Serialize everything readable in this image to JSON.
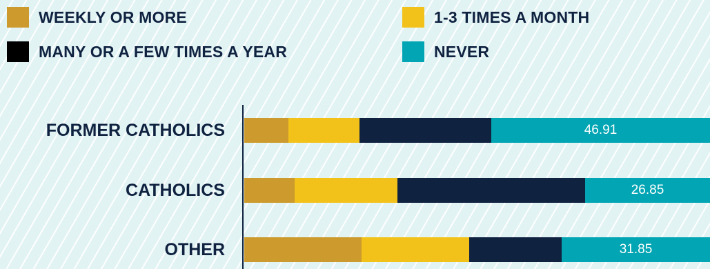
{
  "legend": [
    {
      "label": "WEEKLY OR MORE",
      "color": "#cc9a2d"
    },
    {
      "label": "1-3 TIMES A MONTH",
      "color": "#f3c21a"
    },
    {
      "label": "MANY OR A FEW TIMES A YEAR",
      "color": "#0f2240"
    },
    {
      "label": "NEVER",
      "color": "#02a5b3"
    }
  ],
  "chart_data": {
    "type": "bar",
    "orientation": "horizontal",
    "stacked": true,
    "categories": [
      "FORMER CATHOLICS",
      "CATHOLICS",
      "OTHER"
    ],
    "series": [
      {
        "name": "WEEKLY OR MORE",
        "values": [
          9.5,
          10.8,
          25.2
        ]
      },
      {
        "name": "1-3 TIMES A MONTH",
        "values": [
          15.2,
          22.1,
          23.1
        ]
      },
      {
        "name": "MANY OR A FEW TIMES A YEAR",
        "values": [
          28.4,
          40.25,
          19.85
        ]
      },
      {
        "name": "NEVER",
        "values": [
          46.91,
          26.85,
          31.85
        ]
      }
    ],
    "data_labels": [
      "46.91",
      "26.85",
      "31.85"
    ],
    "xlim": [
      0,
      100
    ]
  }
}
